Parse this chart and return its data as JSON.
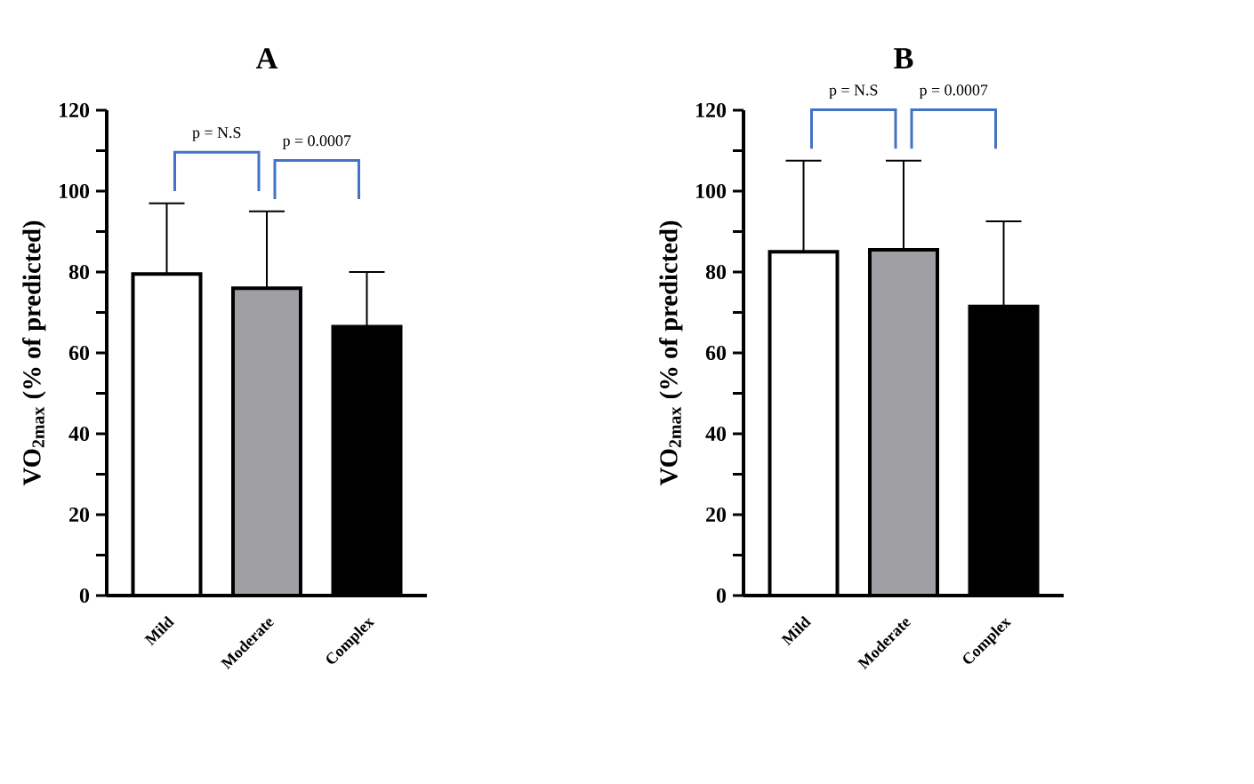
{
  "chart_data": [
    {
      "type": "bar",
      "title": "A",
      "ylabel": "VO$_{2max}$ (% of predicted)",
      "categories": [
        "Mild",
        "Moderate",
        "Complex"
      ],
      "values": [
        79.5,
        76,
        66.5
      ],
      "colors": [
        "#ffffff",
        "#a0a0a4",
        "#000000"
      ],
      "errors": [
        [
          79.5,
          97
        ],
        [
          76,
          95
        ],
        [
          66.5,
          80
        ]
      ],
      "ylim": [
        0,
        120
      ],
      "yticks": [
        0,
        {
          "value": 10,
          "label": null
        },
        20,
        {
          "value": 30,
          "label": null
        },
        40,
        {
          "value": 50,
          "label": null
        },
        60,
        {
          "value": 70,
          "label": null
        },
        80,
        {
          "value": 90,
          "label": null
        },
        100,
        {
          "value": 110,
          "label": null
        },
        120
      ],
      "annotations": [
        "p = N.S",
        "p = 0.0007"
      ]
    },
    {
      "type": "bar",
      "title": "B",
      "ylabel": "VO$_{2max}$ (% of predicted)",
      "categories": [
        "Mild",
        "Moderate",
        "Complex"
      ],
      "values": [
        85,
        85.5,
        71.5
      ],
      "colors": [
        "#ffffff",
        "#a0a0a4",
        "#000000"
      ],
      "errors": [
        [
          85,
          107.5
        ],
        [
          85.5,
          107.5
        ],
        [
          71.5,
          92.5
        ]
      ],
      "ylim": [
        0,
        120
      ],
      "yticks": [
        0,
        {
          "value": 10,
          "label": null
        },
        20,
        {
          "value": 30,
          "label": null
        },
        40,
        {
          "value": 50,
          "label": null
        },
        60,
        {
          "value": 70,
          "label": null
        },
        80,
        {
          "value": 90,
          "label": null
        },
        100,
        {
          "value": 110,
          "label": null
        },
        120
      ],
      "annotations": [
        "p = N.S",
        "p = 0.0007"
      ]
    }
  ]
}
